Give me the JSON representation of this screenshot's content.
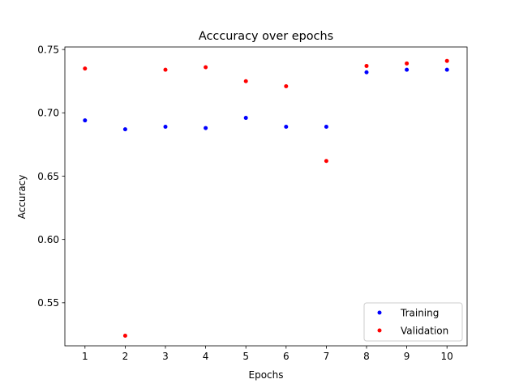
{
  "chart_data": {
    "type": "scatter",
    "title": "Acccuracy over epochs",
    "xlabel": "Epochs",
    "ylabel": "Accuracy",
    "x": [
      1,
      2,
      3,
      4,
      5,
      6,
      7,
      8,
      9,
      10
    ],
    "xlim": [
      0.5,
      10.5
    ],
    "ylim": [
      0.516,
      0.752
    ],
    "x_ticks": [
      1,
      2,
      3,
      4,
      5,
      6,
      7,
      8,
      9,
      10
    ],
    "y_ticks": [
      0.55,
      0.6,
      0.65,
      0.7,
      0.75
    ],
    "y_tick_labels": [
      "0.55",
      "0.60",
      "0.65",
      "0.70",
      "0.75"
    ],
    "grid": false,
    "legend_position": "lower-right",
    "series": [
      {
        "name": "Training",
        "color": "#0000ff",
        "values": [
          0.694,
          0.687,
          0.689,
          0.688,
          0.696,
          0.689,
          0.689,
          0.732,
          0.734,
          0.734
        ]
      },
      {
        "name": "Validation",
        "color": "#ff0000",
        "values": [
          0.735,
          0.524,
          0.734,
          0.736,
          0.725,
          0.721,
          0.662,
          0.737,
          0.739,
          0.741
        ]
      }
    ]
  }
}
